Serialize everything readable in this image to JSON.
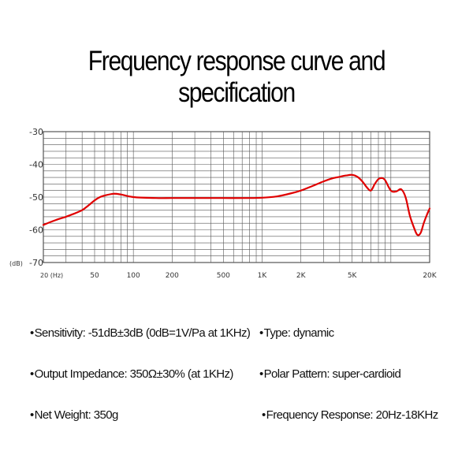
{
  "title": "Frequency response curve and specification",
  "chart_data": {
    "type": "line",
    "title": "Frequency response curve and specification",
    "xlabel": "",
    "ylabel": "",
    "y_unit_label": "(dB)",
    "x_scale": "log",
    "xlim": [
      20,
      20000
    ],
    "ylim": [
      -70,
      -30
    ],
    "x_ticks": [
      {
        "value": 20,
        "label": "20 (Hz)"
      },
      {
        "value": 50,
        "label": "50"
      },
      {
        "value": 100,
        "label": "100"
      },
      {
        "value": 200,
        "label": "200"
      },
      {
        "value": 500,
        "label": "500"
      },
      {
        "value": 1000,
        "label": "1K"
      },
      {
        "value": 2000,
        "label": "2K"
      },
      {
        "value": 5000,
        "label": "5K"
      },
      {
        "value": 20000,
        "label": "20K"
      }
    ],
    "y_ticks": [
      {
        "value": -30,
        "label": "-30"
      },
      {
        "value": -40,
        "label": "-40"
      },
      {
        "value": -50,
        "label": "-50"
      },
      {
        "value": -60,
        "label": "-60"
      },
      {
        "value": -70,
        "label": "-70"
      }
    ],
    "grid": true,
    "line_color": "#e00000",
    "series": [
      {
        "x": [
          20,
          25,
          30,
          35,
          40,
          45,
          50,
          55,
          60,
          70,
          80,
          100,
          150,
          200,
          300,
          500,
          800,
          1000,
          1300,
          1700,
          2000,
          2500,
          3000,
          3500,
          4000,
          4500,
          5000,
          5500,
          6000,
          6500,
          7000,
          7500,
          8000,
          8500,
          9000,
          10000,
          11000,
          12000,
          13000,
          14000,
          15000,
          16000,
          17000,
          18000,
          19000,
          20000
        ],
        "y": [
          -58.5,
          -57,
          -56,
          -55,
          -54,
          -52.5,
          -51,
          -50,
          -49.5,
          -49,
          -49.2,
          -50,
          -50.3,
          -50.3,
          -50.3,
          -50.3,
          -50.3,
          -50.2,
          -49.8,
          -48.8,
          -48,
          -46.5,
          -45.2,
          -44.3,
          -43.8,
          -43.4,
          -43.2,
          -43.8,
          -45.2,
          -47,
          -48,
          -46,
          -44.5,
          -44.2,
          -44.8,
          -48,
          -48.3,
          -47.6,
          -50,
          -55.5,
          -59,
          -61.5,
          -61,
          -58,
          -55.5,
          -53.5
        ]
      }
    ]
  },
  "specs": [
    {
      "text": "Sensitivity: -51dB±3dB (0dB=1V/Pa at 1KHz)"
    },
    {
      "text": "Type: dynamic"
    },
    {
      "text": "Output Impedance: 350Ω±30% (at 1KHz)"
    },
    {
      "text": "Polar Pattern: super-cardioid"
    },
    {
      "text": "Net Weight: 350g"
    },
    {
      "text": "Frequency Response: 20Hz-18KHz"
    }
  ],
  "bullet": "•"
}
